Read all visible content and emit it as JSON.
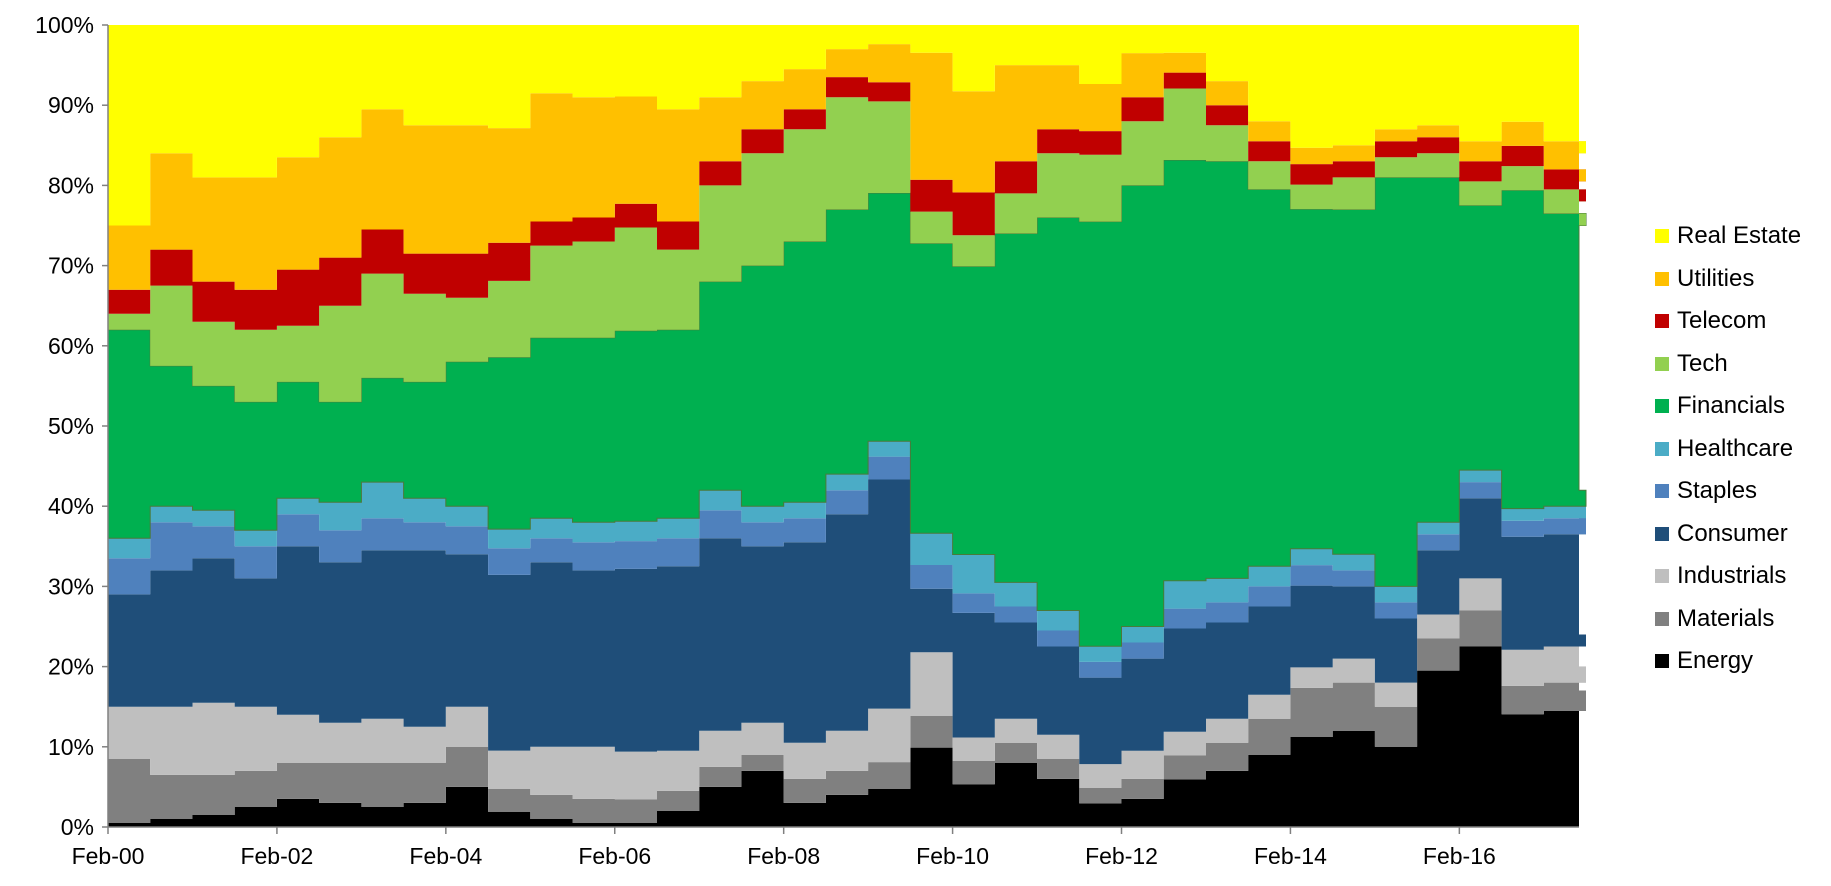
{
  "chart_data": {
    "type": "area",
    "stacked": true,
    "normalized_to_100_percent": true,
    "x_unit": "months",
    "x": [
      "Feb-00",
      "Aug-00",
      "Feb-01",
      "Aug-01",
      "Feb-02",
      "Aug-02",
      "Feb-03",
      "Aug-03",
      "Feb-04",
      "Aug-04",
      "Feb-05",
      "Aug-05",
      "Feb-06",
      "Aug-06",
      "Feb-07",
      "Aug-07",
      "Feb-08",
      "Aug-08",
      "Feb-09",
      "Aug-09",
      "Feb-10",
      "Aug-10",
      "Feb-11",
      "Aug-11",
      "Feb-12",
      "Aug-12",
      "Feb-13",
      "Aug-13",
      "Feb-14",
      "Aug-14",
      "Feb-15",
      "Aug-15",
      "Feb-16",
      "Aug-16",
      "Feb-17",
      "Aug-17"
    ],
    "x_tick_labels": [
      "Feb-00",
      "Feb-02",
      "Feb-04",
      "Feb-06",
      "Feb-08",
      "Feb-10",
      "Feb-12",
      "Feb-14",
      "Feb-16"
    ],
    "y_tick_labels": [
      "0%",
      "10%",
      "20%",
      "30%",
      "40%",
      "50%",
      "60%",
      "70%",
      "80%",
      "90%",
      "100%"
    ],
    "ylim": [
      0,
      100
    ],
    "title": "",
    "xlabel": "",
    "ylabel": "",
    "grid": false,
    "legend_position": "right",
    "series": [
      {
        "name": "Energy",
        "color": "#000000",
        "values": [
          0.5,
          1.0,
          1.5,
          2.5,
          3.5,
          3.0,
          2.5,
          3.0,
          5.0,
          2.0,
          1.0,
          0.5,
          0.5,
          2.0,
          5.0,
          7.0,
          3.0,
          4.0,
          5.0,
          10.0,
          5.5,
          8.0,
          6.0,
          3.0,
          3.5,
          6.0,
          7.0,
          9.0,
          11.0,
          12.0,
          10.0,
          19.5,
          22.5,
          14.0,
          14.5,
          17.0
        ]
      },
      {
        "name": "Materials",
        "color": "#808080",
        "values": [
          8.0,
          5.5,
          5.0,
          4.5,
          4.5,
          5.0,
          5.5,
          5.0,
          5.0,
          3.0,
          3.0,
          3.0,
          3.0,
          2.5,
          2.5,
          2.0,
          3.0,
          3.0,
          3.5,
          4.0,
          3.0,
          2.5,
          2.5,
          2.0,
          2.5,
          3.0,
          3.5,
          4.5,
          6.0,
          6.0,
          5.0,
          4.0,
          4.5,
          3.5,
          3.5,
          3.0
        ]
      },
      {
        "name": "Industrials",
        "color": "#bfbfbf",
        "values": [
          6.5,
          8.5,
          9.0,
          8.0,
          6.0,
          5.0,
          5.5,
          4.5,
          5.0,
          5.0,
          6.0,
          6.5,
          6.0,
          5.0,
          4.5,
          4.0,
          4.5,
          5.0,
          7.0,
          8.0,
          3.0,
          3.0,
          3.0,
          3.0,
          3.5,
          3.0,
          3.0,
          3.0,
          2.5,
          3.0,
          3.0,
          3.0,
          4.0,
          4.5,
          4.5,
          4.0
        ]
      },
      {
        "name": "Consumer",
        "color": "#1f4e79",
        "values": [
          14.0,
          17.0,
          18.0,
          16.0,
          21.0,
          20.0,
          21.0,
          22.0,
          19.0,
          23.0,
          23.0,
          22.0,
          23.0,
          23.0,
          24.0,
          22.0,
          25.0,
          27.0,
          30.0,
          8.0,
          16.0,
          12.0,
          11.0,
          11.0,
          11.5,
          13.0,
          12.0,
          11.0,
          10.0,
          9.0,
          8.0,
          8.0,
          10.0,
          14.0,
          14.0,
          14.5
        ]
      },
      {
        "name": "Staples",
        "color": "#4f81bd",
        "values": [
          4.5,
          6.0,
          4.0,
          4.0,
          4.0,
          4.0,
          4.0,
          3.5,
          3.5,
          3.5,
          3.0,
          3.5,
          3.5,
          3.5,
          3.5,
          3.0,
          3.0,
          3.0,
          3.0,
          3.0,
          2.5,
          2.0,
          2.0,
          2.0,
          2.0,
          2.5,
          2.5,
          2.5,
          2.5,
          2.0,
          2.0,
          2.0,
          2.0,
          2.0,
          2.0,
          2.0
        ]
      },
      {
        "name": "Healthcare",
        "color": "#4bacc6",
        "values": [
          2.5,
          2.0,
          2.0,
          2.0,
          2.0,
          3.5,
          4.5,
          3.0,
          2.5,
          2.5,
          2.5,
          2.5,
          2.5,
          2.5,
          2.5,
          2.0,
          2.0,
          2.0,
          2.0,
          4.0,
          5.0,
          3.0,
          2.5,
          2.0,
          2.0,
          3.5,
          3.0,
          2.5,
          2.0,
          2.0,
          2.0,
          1.5,
          1.5,
          1.5,
          1.5,
          1.5
        ]
      },
      {
        "name": "Financials",
        "color": "#00b050",
        "values": [
          26.0,
          17.5,
          15.5,
          16.0,
          14.5,
          12.5,
          13.0,
          14.5,
          18.0,
          22.5,
          22.5,
          23.0,
          24.0,
          23.5,
          26.0,
          30.0,
          32.5,
          33.0,
          32.5,
          36.5,
          37.0,
          43.5,
          49.0,
          54.0,
          55.0,
          53.0,
          52.0,
          47.0,
          41.5,
          43.0,
          51.0,
          43.0,
          33.0,
          39.5,
          36.5,
          33.0
        ]
      },
      {
        "name": "Tech",
        "color": "#92d050",
        "values": [
          2.0,
          10.0,
          8.0,
          9.0,
          7.0,
          12.0,
          13.0,
          11.0,
          8.0,
          10.0,
          11.5,
          12.0,
          13.0,
          10.0,
          12.0,
          14.0,
          14.0,
          14.0,
          12.0,
          4.0,
          4.0,
          5.0,
          8.0,
          8.5,
          8.0,
          9.0,
          4.5,
          3.5,
          3.0,
          4.0,
          2.5,
          3.0,
          3.0,
          3.0,
          3.0,
          3.0
        ]
      },
      {
        "name": "Telecom",
        "color": "#c00000",
        "values": [
          3.0,
          4.5,
          5.0,
          5.0,
          7.0,
          6.0,
          5.5,
          5.0,
          5.5,
          5.0,
          3.0,
          3.0,
          3.0,
          3.5,
          3.0,
          3.0,
          2.5,
          2.5,
          2.5,
          4.0,
          5.5,
          4.0,
          3.0,
          3.0,
          3.0,
          2.0,
          2.5,
          2.5,
          2.5,
          2.0,
          2.0,
          2.0,
          2.5,
          2.5,
          2.5,
          2.5
        ]
      },
      {
        "name": "Utilities",
        "color": "#ffc000",
        "values": [
          8.0,
          12.0,
          13.0,
          14.0,
          14.0,
          15.0,
          15.0,
          16.0,
          16.0,
          15.0,
          16.0,
          15.0,
          13.5,
          14.0,
          8.0,
          6.0,
          5.0,
          3.5,
          5.0,
          16.0,
          13.0,
          12.0,
          8.0,
          6.0,
          5.5,
          2.5,
          3.0,
          2.5,
          2.0,
          2.0,
          1.5,
          1.5,
          2.5,
          3.0,
          3.5,
          3.5
        ]
      },
      {
        "name": "Real Estate",
        "color": "#ffff00",
        "values": [
          25.0,
          16.0,
          19.0,
          19.0,
          16.5,
          14.0,
          10.5,
          12.5,
          12.5,
          13.5,
          8.5,
          9.0,
          9.0,
          10.5,
          9.0,
          7.0,
          5.5,
          3.0,
          2.5,
          3.5,
          8.5,
          5.0,
          5.0,
          7.5,
          3.5,
          3.5,
          7.0,
          12.0,
          15.0,
          15.0,
          13.0,
          12.5,
          14.5,
          12.0,
          14.5,
          16.0
        ]
      }
    ]
  }
}
